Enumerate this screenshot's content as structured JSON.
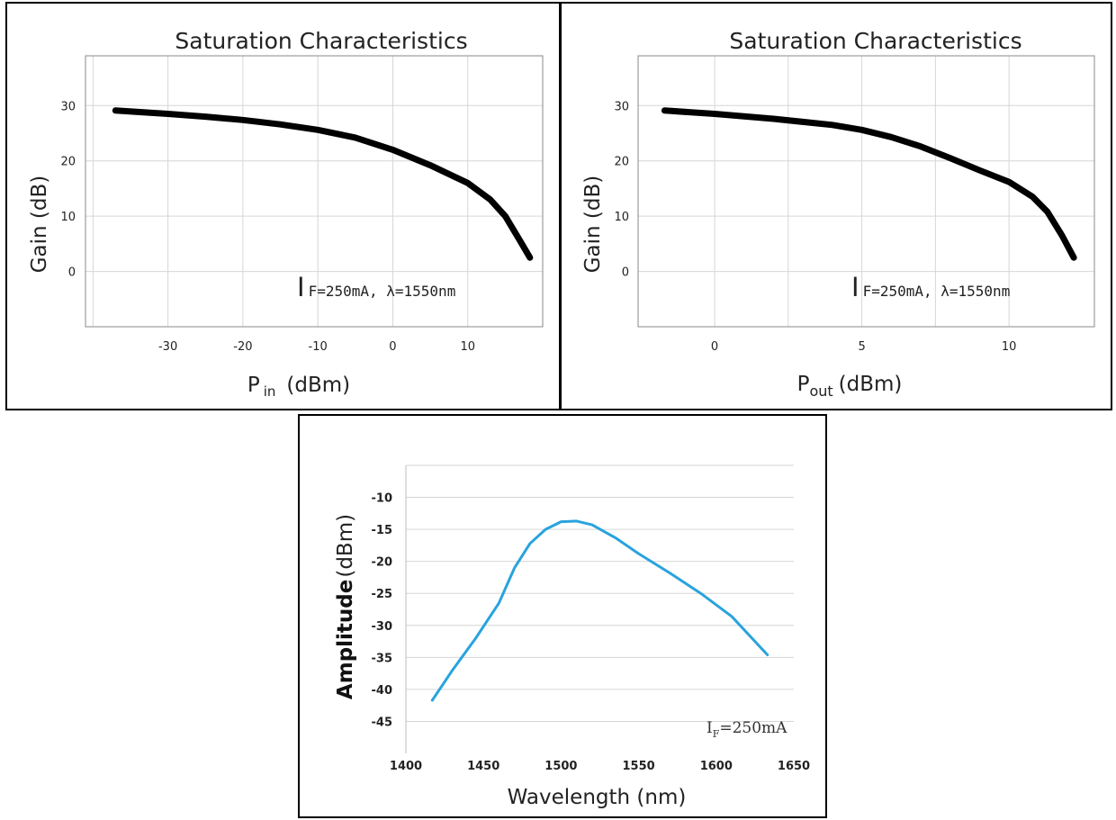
{
  "chart_data": [
    {
      "type": "line",
      "title": "Saturation Characteristics",
      "xlabel_main": "P",
      "xlabel_sub": "in",
      "xlabel_unit": "(dBm)",
      "ylabel": "Gain (dB)",
      "xlim": [
        -41,
        20
      ],
      "ylim": [
        -10,
        39
      ],
      "xticks": [
        -30,
        -20,
        -10,
        0,
        10
      ],
      "yticks": [
        0,
        10,
        20,
        30
      ],
      "grid": true,
      "annotation_I": "I",
      "annotation_rest": "F=250mA,  λ=1550nm",
      "series": [
        {
          "color": "#000000",
          "x": [
            -37,
            -30,
            -25,
            -20,
            -15,
            -10,
            -5,
            0,
            5,
            10,
            13,
            15,
            17,
            18.3
          ],
          "y": [
            29.1,
            28.5,
            28,
            27.4,
            26.6,
            25.6,
            24.2,
            22,
            19.2,
            16,
            13,
            10,
            5.5,
            2.5
          ]
        }
      ]
    },
    {
      "type": "line",
      "title": "Saturation Characteristics",
      "xlabel_main": "P",
      "xlabel_sub": "out",
      "xlabel_unit": "(dBm)",
      "ylabel": "Gain (dB)",
      "xlim": [
        -2.6,
        12.9
      ],
      "ylim": [
        -10,
        39
      ],
      "xticks": [
        0,
        5,
        10
      ],
      "yticks": [
        0,
        10,
        20,
        30
      ],
      "grid": true,
      "annotation_I": "I",
      "annotation_rest": "F=250mA,  λ=1550nm",
      "series": [
        {
          "color": "#000000",
          "x": [
            -1.7,
            0,
            2,
            4,
            5,
            6,
            7,
            8,
            9,
            10,
            10.8,
            11.3,
            11.8,
            12.2
          ],
          "y": [
            29.1,
            28.5,
            27.6,
            26.5,
            25.6,
            24.3,
            22.6,
            20.5,
            18.3,
            16.2,
            13.5,
            10.8,
            6.5,
            2.5
          ]
        }
      ]
    },
    {
      "type": "line",
      "title": "",
      "xlabel": "Wavelength (nm)",
      "ylabel_a": "Amplitude",
      "ylabel_b": "(dBm)",
      "xlim": [
        1400,
        1650
      ],
      "ylim": [
        -50,
        -5
      ],
      "xticks": [
        1400,
        1450,
        1500,
        1550,
        1600,
        1650
      ],
      "yticks": [
        -10,
        -15,
        -20,
        -25,
        -30,
        -35,
        -40,
        -45
      ],
      "grid": true,
      "annotation_I": "I",
      "annotation_sub": "F",
      "annotation_rest": "=250mA",
      "series": [
        {
          "color": "#29a3dd",
          "x": [
            1417,
            1430,
            1445,
            1460,
            1470,
            1480,
            1490,
            1500,
            1510,
            1520,
            1535,
            1550,
            1570,
            1590,
            1610,
            1633
          ],
          "y": [
            -41.7,
            -37,
            -32,
            -26.5,
            -21,
            -17.2,
            -15,
            -13.8,
            -13.7,
            -14.3,
            -16.3,
            -18.8,
            -21.8,
            -25,
            -28.6,
            -34.6
          ]
        }
      ]
    }
  ]
}
